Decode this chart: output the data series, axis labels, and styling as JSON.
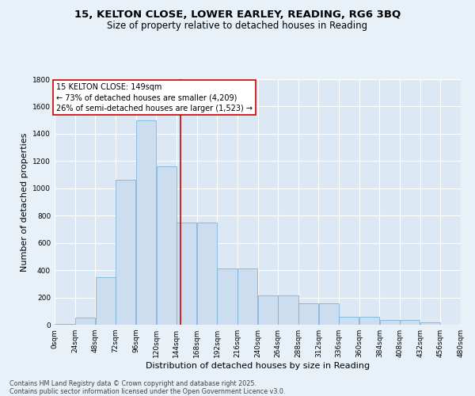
{
  "title_line1": "15, KELTON CLOSE, LOWER EARLEY, READING, RG6 3BQ",
  "title_line2": "Size of property relative to detached houses in Reading",
  "xlabel": "Distribution of detached houses by size in Reading",
  "ylabel": "Number of detached properties",
  "bar_color": "#ccddf0",
  "bar_edge_color": "#6aaad4",
  "plot_bg_color": "#dce9f5",
  "fig_bg_color": "#e8f0f8",
  "grid_color": "#ffffff",
  "annotation_text": "15 KELTON CLOSE: 149sqm\n← 73% of detached houses are smaller (4,209)\n26% of semi-detached houses are larger (1,523) →",
  "vline_x": 149,
  "vline_color": "#cc0000",
  "footer_line1": "Contains HM Land Registry data © Crown copyright and database right 2025.",
  "footer_line2": "Contains public sector information licensed under the Open Government Licence v3.0.",
  "bin_edges": [
    0,
    24,
    48,
    72,
    96,
    120,
    144,
    168,
    192,
    216,
    240,
    264,
    288,
    312,
    336,
    360,
    384,
    408,
    432,
    456,
    480
  ],
  "bar_heights": [
    5,
    50,
    350,
    1060,
    1500,
    1160,
    750,
    750,
    415,
    415,
    215,
    215,
    155,
    155,
    60,
    60,
    35,
    35,
    15,
    0
  ],
  "ylim": [
    0,
    1800
  ],
  "yticks": [
    0,
    200,
    400,
    600,
    800,
    1000,
    1200,
    1400,
    1600,
    1800
  ],
  "title_fontsize": 9.5,
  "subtitle_fontsize": 8.5,
  "axis_label_fontsize": 8,
  "tick_fontsize": 6.5,
  "annotation_fontsize": 7,
  "footer_fontsize": 5.8
}
